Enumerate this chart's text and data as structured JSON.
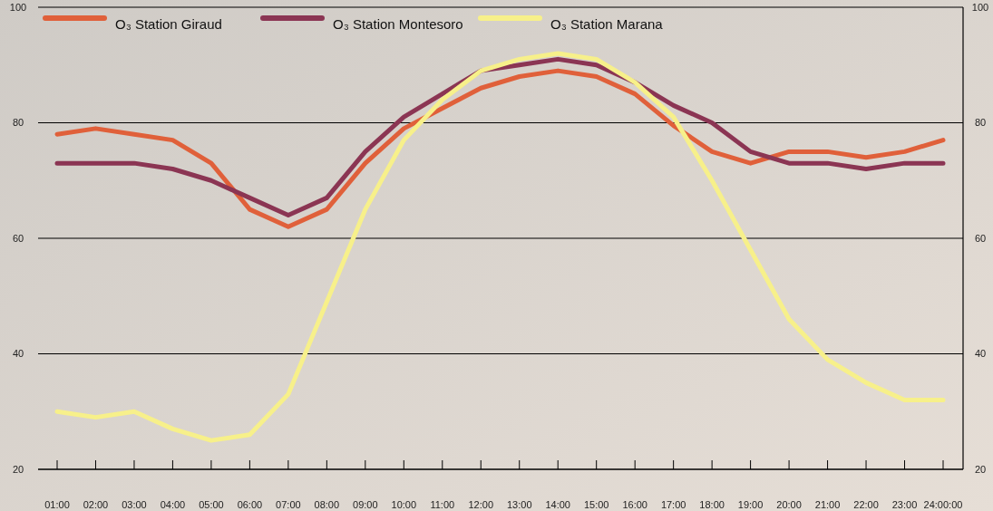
{
  "chart_data": {
    "type": "line",
    "categories": [
      "01:00",
      "02:00",
      "03:00",
      "04:00",
      "05:00",
      "06:00",
      "07:00",
      "08:00",
      "09:00",
      "10:00",
      "11:00",
      "12:00",
      "13:00",
      "14:00",
      "15:00",
      "16:00",
      "17:00",
      "18:00",
      "19:00",
      "20:00",
      "21:00",
      "22:00",
      "23:00",
      "24:00:00"
    ],
    "series": [
      {
        "name": "O₃ Station Giraud",
        "color": "#e0603a",
        "values": [
          78,
          79,
          78,
          77,
          73,
          65,
          62,
          65,
          73,
          79,
          82.5,
          86,
          88,
          89,
          88,
          85,
          79.5,
          75,
          73,
          75,
          75,
          74,
          75,
          77
        ]
      },
      {
        "name": "O₃ Station Montesoro",
        "color": "#8b3553",
        "values": [
          73,
          73,
          73,
          72,
          70,
          67,
          64,
          67,
          75,
          81,
          85,
          89,
          90,
          91,
          90,
          87,
          83,
          80,
          75,
          73,
          73,
          72,
          73,
          73
        ]
      },
      {
        "name": "O₃ Station Marana",
        "color": "#f7f08a",
        "values": [
          30,
          29,
          30,
          27,
          25,
          26,
          33,
          49,
          65,
          77,
          84,
          89,
          91,
          92,
          91,
          87,
          81,
          70,
          58,
          46,
          39,
          35,
          32,
          32
        ]
      }
    ],
    "ylim": [
      20,
      100
    ],
    "yticks": [
      20,
      40,
      60,
      80,
      100
    ],
    "y2lim": [
      20,
      100
    ],
    "y2ticks": [
      20,
      40,
      60,
      80,
      100
    ],
    "grid": "y",
    "legend": "top left",
    "marker": "none",
    "line_style": "solid"
  }
}
